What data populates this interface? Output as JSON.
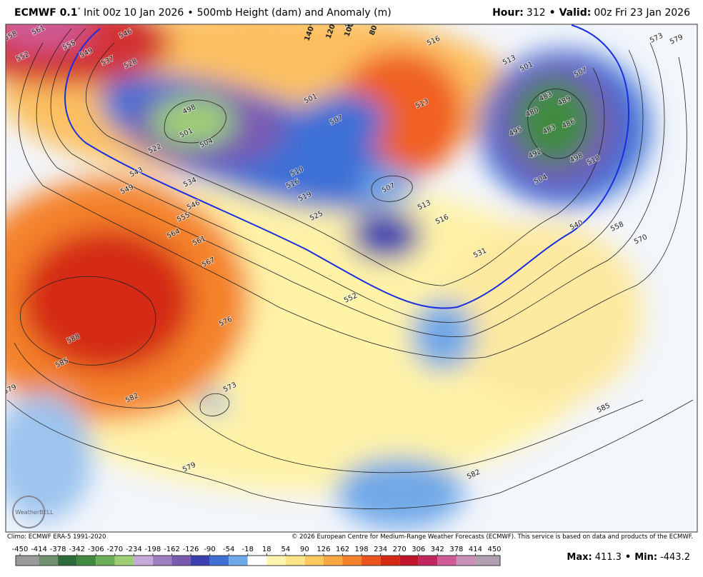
{
  "header": {
    "model": "ECMWF 0.1",
    "degree": "°",
    "init": "Init 00z 10 Jan 2026",
    "separator": "•",
    "product": "500mb Height (dam) and Anomaly (m)",
    "hour_label": "Hour:",
    "hour": 312,
    "valid_label": "Valid:",
    "valid": "00z Fri 23 Jan 2026"
  },
  "map": {
    "longitude_labels": [
      "140°W",
      "120°W",
      "100°W",
      "80°W"
    ],
    "contour_labels": [
      "561",
      "558",
      "555",
      "552",
      "549",
      "546",
      "537",
      "528",
      "498",
      "501",
      "504",
      "522",
      "543",
      "549",
      "534",
      "546",
      "555",
      "564",
      "561",
      "567",
      "588",
      "585",
      "582",
      "579",
      "579",
      "576",
      "573",
      "552",
      "510",
      "516",
      "519",
      "525",
      "507",
      "513",
      "516",
      "531",
      "513",
      "516",
      "501",
      "507",
      "513",
      "501",
      "507",
      "483",
      "489",
      "480",
      "486",
      "483",
      "495",
      "492",
      "498",
      "510",
      "504",
      "540",
      "558",
      "570",
      "573",
      "579",
      "585",
      "582",
      "576"
    ],
    "logo": "WeatherBELL"
  },
  "footer": {
    "climo": "Climo: ECMWF ERA-5 1991-2020",
    "copyright": "© 2026 European Centre for Medium-Range Weather Forecasts (ECMWF). This service is based on data and products of the ECMWF.",
    "colorbar_ticks": [
      -450,
      -414,
      -378,
      -342,
      -306,
      -270,
      -234,
      -198,
      -162,
      -126,
      -90,
      -54,
      -18,
      18,
      54,
      90,
      126,
      162,
      198,
      234,
      270,
      306,
      342,
      378,
      414,
      450
    ],
    "max_label": "Max:",
    "max": 411.3,
    "min_label": "Min:",
    "min": -443.2
  }
}
